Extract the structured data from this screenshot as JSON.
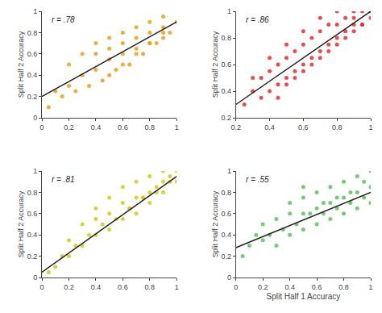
{
  "chart_data": [
    {
      "type": "scatter",
      "grid": false,
      "ylabel": "Split Half 2 Accuracy",
      "annotations": [
        "r = .78"
      ],
      "xlim": [
        0,
        1
      ],
      "ylim": [
        0,
        1
      ],
      "xticks": [
        0,
        0.2,
        0.4,
        0.6,
        0.8,
        1
      ],
      "yticks": [
        0,
        0.2,
        0.4,
        0.6,
        0.8,
        1
      ],
      "series": [
        {
          "type": "scatter",
          "marker": "circle",
          "color": "#E8A020",
          "x": [
            0.05,
            0.1,
            0.2,
            0.2,
            0.3,
            0.3,
            0.4,
            0.4,
            0.4,
            0.5,
            0.5,
            0.5,
            0.6,
            0.6,
            0.6,
            0.7,
            0.7,
            0.7,
            0.8,
            0.8,
            0.8,
            0.9,
            0.9,
            0.9,
            1.0,
            0.65,
            0.75,
            0.85,
            0.95,
            0.55,
            0.45,
            0.35,
            0.25,
            0.15,
            0.5,
            0.6,
            0.7,
            0.8,
            0.9
          ],
          "values": [
            0.1,
            0.25,
            0.3,
            0.5,
            0.4,
            0.6,
            0.45,
            0.6,
            0.7,
            0.55,
            0.65,
            0.75,
            0.6,
            0.7,
            0.8,
            0.65,
            0.75,
            0.85,
            0.7,
            0.8,
            0.9,
            0.75,
            0.85,
            0.95,
            0.9,
            0.5,
            0.6,
            0.7,
            0.8,
            0.45,
            0.35,
            0.3,
            0.25,
            0.2,
            0.4,
            0.5,
            0.6,
            0.7,
            0.8
          ]
        },
        {
          "type": "line",
          "line_style": "solid",
          "color": "#222222",
          "x": [
            0,
            1
          ],
          "values": [
            0.2,
            0.9
          ]
        }
      ]
    },
    {
      "type": "scatter",
      "grid": false,
      "ylabel": "Split Half 2 Accuracy",
      "annotations": [
        "r = .86"
      ],
      "xlim": [
        0.2,
        1
      ],
      "ylim": [
        0.2,
        1
      ],
      "xticks": [
        0.2,
        0.4,
        0.6,
        0.8,
        1
      ],
      "yticks": [
        0.2,
        0.4,
        0.6,
        0.8,
        1
      ],
      "series": [
        {
          "type": "scatter",
          "marker": "circle",
          "color": "#E03030",
          "x": [
            0.25,
            0.3,
            0.3,
            0.35,
            0.35,
            0.4,
            0.4,
            0.4,
            0.45,
            0.45,
            0.5,
            0.5,
            0.5,
            0.55,
            0.55,
            0.6,
            0.6,
            0.6,
            0.65,
            0.65,
            0.7,
            0.7,
            0.7,
            0.75,
            0.75,
            0.8,
            0.8,
            0.8,
            0.85,
            0.85,
            0.9,
            0.9,
            0.9,
            0.95,
            0.95,
            1.0,
            1.0,
            0.5,
            0.6,
            0.7,
            0.8,
            0.9,
            0.45,
            0.55,
            0.65,
            0.75,
            0.85,
            0.95
          ],
          "values": [
            0.3,
            0.4,
            0.5,
            0.35,
            0.5,
            0.4,
            0.55,
            0.65,
            0.45,
            0.6,
            0.5,
            0.65,
            0.75,
            0.55,
            0.7,
            0.6,
            0.75,
            0.85,
            0.65,
            0.8,
            0.7,
            0.85,
            0.95,
            0.75,
            0.9,
            0.8,
            0.9,
            1.0,
            0.85,
            0.95,
            0.9,
            1.0,
            0.95,
            0.9,
            1.0,
            0.95,
            1.0,
            0.45,
            0.55,
            0.65,
            0.75,
            0.85,
            0.35,
            0.5,
            0.6,
            0.7,
            0.8,
            0.9
          ]
        },
        {
          "type": "line",
          "line_style": "solid",
          "color": "#222222",
          "x": [
            0.2,
            1.0
          ],
          "values": [
            0.3,
            1.0
          ]
        }
      ]
    },
    {
      "type": "scatter",
      "grid": false,
      "ylabel": "Split Half 2 Accuracy",
      "annotations": [
        "r = .81"
      ],
      "xlim": [
        0,
        1
      ],
      "ylim": [
        0,
        1
      ],
      "xticks": [
        0,
        0.2,
        0.4,
        0.6,
        0.8,
        1
      ],
      "yticks": [
        0,
        0.2,
        0.4,
        0.6,
        0.8,
        1
      ],
      "series": [
        {
          "type": "scatter",
          "marker": "circle",
          "color": "#D4C820",
          "x": [
            0.05,
            0.1,
            0.15,
            0.2,
            0.2,
            0.25,
            0.3,
            0.3,
            0.35,
            0.4,
            0.4,
            0.4,
            0.5,
            0.5,
            0.5,
            0.6,
            0.6,
            0.6,
            0.65,
            0.7,
            0.7,
            0.7,
            0.75,
            0.8,
            0.8,
            0.8,
            0.85,
            0.9,
            0.9,
            0.9,
            0.95,
            1.0,
            1.0,
            0.45,
            0.55,
            0.65,
            0.75,
            0.85,
            0.95
          ],
          "values": [
            0.05,
            0.1,
            0.2,
            0.2,
            0.35,
            0.3,
            0.3,
            0.5,
            0.4,
            0.4,
            0.55,
            0.65,
            0.45,
            0.6,
            0.75,
            0.55,
            0.7,
            0.85,
            0.65,
            0.6,
            0.75,
            0.9,
            0.75,
            0.7,
            0.8,
            0.95,
            0.8,
            0.8,
            0.9,
            1.0,
            0.9,
            0.9,
            1.0,
            0.5,
            0.55,
            0.65,
            0.75,
            0.85,
            0.95
          ]
        },
        {
          "type": "line",
          "line_style": "solid",
          "color": "#222222",
          "x": [
            0,
            1
          ],
          "values": [
            0.05,
            0.95
          ]
        }
      ]
    },
    {
      "type": "scatter",
      "grid": false,
      "xlabel": "Split Half 1 Accuracy",
      "ylabel": "Split Half 2 Accuracy",
      "annotations": [
        "r = .55"
      ],
      "xlim": [
        0,
        1
      ],
      "ylim": [
        0,
        1
      ],
      "xticks": [
        0,
        0.2,
        0.4,
        0.6,
        0.8,
        1
      ],
      "yticks": [
        0,
        0.2,
        0.4,
        0.6,
        0.8,
        1
      ],
      "series": [
        {
          "type": "scatter",
          "marker": "circle",
          "color": "#60C060",
          "x": [
            0.05,
            0.1,
            0.15,
            0.2,
            0.2,
            0.25,
            0.3,
            0.3,
            0.35,
            0.4,
            0.4,
            0.4,
            0.5,
            0.5,
            0.5,
            0.5,
            0.6,
            0.6,
            0.6,
            0.65,
            0.7,
            0.7,
            0.7,
            0.75,
            0.8,
            0.8,
            0.8,
            0.85,
            0.9,
            0.9,
            0.9,
            0.95,
            1.0,
            1.0,
            0.45,
            0.55,
            0.65,
            0.75,
            0.85,
            0.95,
            1.0
          ],
          "values": [
            0.2,
            0.3,
            0.4,
            0.35,
            0.5,
            0.4,
            0.3,
            0.55,
            0.45,
            0.4,
            0.6,
            0.7,
            0.45,
            0.6,
            0.75,
            0.85,
            0.5,
            0.65,
            0.8,
            0.6,
            0.55,
            0.7,
            0.85,
            0.65,
            0.6,
            0.75,
            0.9,
            0.7,
            0.65,
            0.8,
            0.95,
            0.75,
            0.7,
            0.85,
            0.5,
            0.6,
            0.7,
            0.75,
            0.8,
            0.9,
            1.0
          ]
        },
        {
          "type": "line",
          "line_style": "solid",
          "color": "#222222",
          "x": [
            0,
            1
          ],
          "values": [
            0.28,
            0.8
          ]
        }
      ]
    }
  ]
}
